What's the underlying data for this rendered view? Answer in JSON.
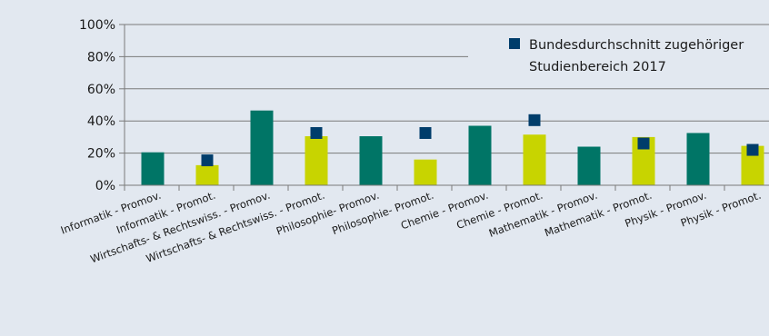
{
  "chart_data": {
    "type": "bar",
    "title": "",
    "xlabel": "",
    "ylabel": "",
    "ylim": [
      0,
      100
    ],
    "y_ticks": [
      "0%",
      "20%",
      "40%",
      "60%",
      "80%",
      "100%"
    ],
    "grid": true,
    "legend_position": "top-right",
    "categories": [
      "Informatik - Promov.",
      "Informatik - Promot.",
      "Wirtschafts- & Rechtswiss. - Promov.",
      "Wirtschafts- & Rechtswiss. - Promot.",
      "Philosophie- Promov.",
      "Philosophie- Promot.",
      "Chemie - Promov.",
      "Chemie - Promot.",
      "Mathematik - Promov.",
      "Mathematik - Promot.",
      "Physik - Promov.",
      "Physik - Promot."
    ],
    "series": [
      {
        "type": "bar",
        "values": [
          20.5,
          12.5,
          46.5,
          30.5,
          30.5,
          16,
          37,
          31.5,
          24,
          30,
          32.5,
          24.5
        ]
      },
      {
        "name": "Bundesdurchschnitt zugehöriger Studienbereich 2017",
        "type": "marker",
        "values": [
          null,
          15.5,
          null,
          32.5,
          null,
          32.5,
          null,
          40.5,
          null,
          26,
          null,
          22
        ]
      }
    ],
    "legend": {
      "line1": "Bundesdurchschnitt zugehöriger",
      "line2": "Studienbereich 2017"
    },
    "colors": {
      "promov": "#007566",
      "promot": "#c8d400",
      "marker": "#003d6b",
      "grid": "#7a7a7a",
      "background": "#e2e8f0"
    }
  }
}
